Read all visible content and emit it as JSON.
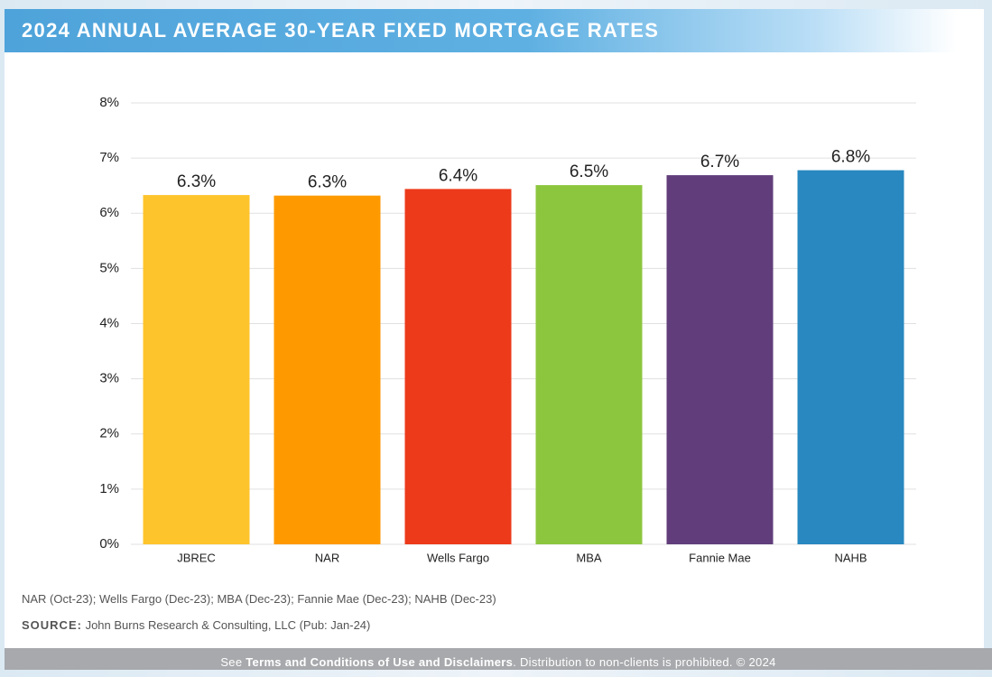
{
  "chart_data": {
    "type": "bar",
    "title": "2024 ANNUAL AVERAGE 30-YEAR FIXED MORTGAGE RATES",
    "categories": [
      "JBREC",
      "NAR",
      "Wells Fargo",
      "MBA",
      "Fannie Mae",
      "NAHB"
    ],
    "values": [
      6.33,
      6.32,
      6.44,
      6.51,
      6.69,
      6.78
    ],
    "value_labels": [
      "6.3%",
      "6.3%",
      "6.4%",
      "6.5%",
      "6.7%",
      "6.8%"
    ],
    "colors": [
      "#fec42c",
      "#fe9a00",
      "#ec3a1b",
      "#8cc63e",
      "#613e7b",
      "#2888bf"
    ],
    "ylim": [
      0,
      8
    ],
    "yticks": [
      {
        "value": 0,
        "label": "0%"
      },
      {
        "value": 1,
        "label": "1%"
      },
      {
        "value": 2,
        "label": "2%"
      },
      {
        "value": 3,
        "label": "3%"
      },
      {
        "value": 4,
        "label": "4%"
      },
      {
        "value": 5,
        "label": "5%"
      },
      {
        "value": 6,
        "label": "6%"
      },
      {
        "value": 7,
        "label": "7%"
      },
      {
        "value": 8,
        "label": "8%"
      }
    ],
    "grid": true
  },
  "notes": "NAR (Oct-23); Wells Fargo (Dec-23); MBA (Dec-23); Fannie Mae (Dec-23); NAHB (Dec-23)",
  "source": {
    "label": "SOURCE:",
    "text": "John Burns Research & Consulting, LLC (Pub: Jan-24)"
  },
  "footer": {
    "prefix": "See",
    "link": "Terms and Conditions of Use and Disclaimers",
    "suffix": ". Distribution to non-clients is prohibited. © 2024"
  }
}
